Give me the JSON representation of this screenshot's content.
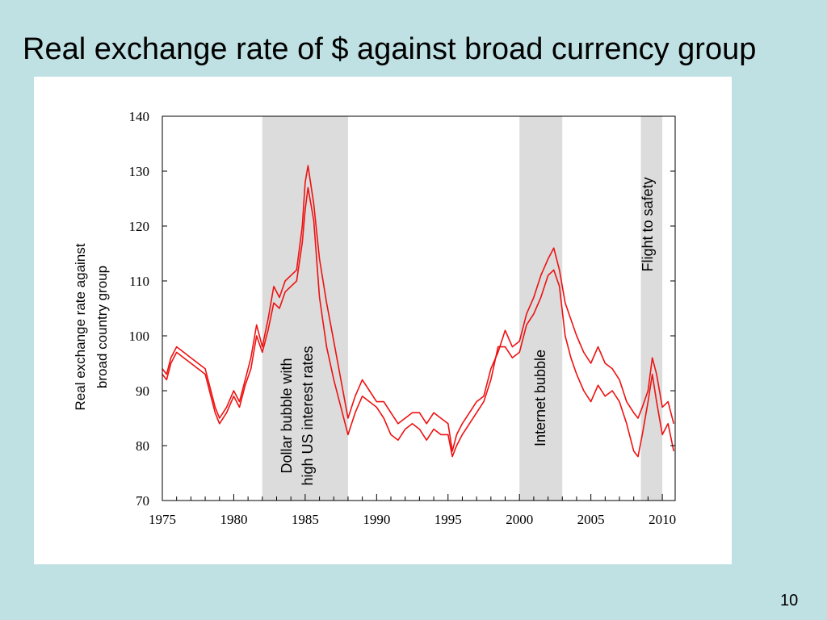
{
  "slide": {
    "title": "Real exchange rate of $ against broad currency group",
    "page_number": "10"
  },
  "colors": {
    "background": "#bfe1e3",
    "panel": "#ffffff",
    "series": "#ee1111",
    "shading": "#dcdcdc"
  },
  "chart_data": {
    "type": "line",
    "title": "",
    "xlabel": "",
    "ylabel": "Real exchange rate against broad country group",
    "ylabel_lines": [
      "Real exchange rate against",
      "broad country group"
    ],
    "xlim": [
      1975,
      2010.9
    ],
    "ylim": [
      70,
      140
    ],
    "x_ticks": [
      1975,
      1980,
      1985,
      1990,
      1995,
      2000,
      2005,
      2010
    ],
    "y_ticks": [
      70,
      80,
      90,
      100,
      110,
      120,
      130,
      140
    ],
    "grid": false,
    "shaded_periods": [
      {
        "start": 1982.0,
        "end": 1988.0,
        "label_lines": [
          "Dollar bubble with",
          "high US interest rates"
        ]
      },
      {
        "start": 2000.0,
        "end": 2003.0,
        "label_lines": [
          "Internet bubble"
        ]
      },
      {
        "start": 2008.5,
        "end": 2010.0,
        "label_lines": [
          "Flight to safety"
        ]
      }
    ],
    "series": [
      {
        "x": [
          1975.0,
          1975.3,
          1975.6,
          1976.0,
          1976.5,
          1977.0,
          1977.5,
          1978.0,
          1978.4,
          1978.7,
          1979.0,
          1979.5,
          1980.0,
          1980.4,
          1980.8,
          1981.2,
          1981.6,
          1982.0,
          1982.4,
          1982.8,
          1983.2,
          1983.6,
          1984.0,
          1984.4,
          1984.8,
          1985.0,
          1985.2,
          1985.6,
          1986.0,
          1986.5,
          1987.0,
          1987.5,
          1988.0,
          1988.5,
          1989.0,
          1989.5,
          1990.0,
          1990.5,
          1991.0,
          1991.5,
          1992.0,
          1992.5,
          1993.0,
          1993.5,
          1994.0,
          1994.5,
          1995.0,
          1995.3,
          1995.6,
          1996.0,
          1996.5,
          1997.0,
          1997.5,
          1998.0,
          1998.5,
          1999.0,
          1999.5,
          2000.0,
          2000.5,
          2001.0,
          2001.5,
          2002.0,
          2002.4,
          2002.8,
          2003.2,
          2003.6,
          2004.0,
          2004.5,
          2005.0,
          2005.5,
          2006.0,
          2006.5,
          2007.0,
          2007.5,
          2008.0,
          2008.3,
          2008.6,
          2009.0,
          2009.3,
          2009.6,
          2010.0,
          2010.4,
          2010.8
        ],
        "values": [
          94,
          93,
          96,
          98,
          97,
          96,
          95,
          94,
          90,
          87,
          85,
          87,
          90,
          88,
          92,
          96,
          102,
          98,
          103,
          109,
          107,
          110,
          111,
          112,
          120,
          128,
          131,
          124,
          114,
          106,
          99,
          92,
          85,
          89,
          92,
          90,
          88,
          88,
          86,
          84,
          85,
          86,
          86,
          84,
          86,
          85,
          84,
          79,
          82,
          84,
          86,
          88,
          89,
          94,
          97,
          101,
          98,
          99,
          104,
          107,
          111,
          114,
          116,
          112,
          106,
          103,
          100,
          97,
          95,
          98,
          95,
          94,
          92,
          88,
          86,
          85,
          87,
          90,
          96,
          93,
          87,
          88,
          84
        ]
      },
      {
        "x": [
          1975.0,
          1975.3,
          1975.6,
          1976.0,
          1976.5,
          1977.0,
          1977.5,
          1978.0,
          1978.4,
          1978.7,
          1979.0,
          1979.5,
          1980.0,
          1980.4,
          1980.8,
          1981.2,
          1981.6,
          1982.0,
          1982.4,
          1982.8,
          1983.2,
          1983.6,
          1984.0,
          1984.4,
          1984.8,
          1985.0,
          1985.2,
          1985.6,
          1986.0,
          1986.5,
          1987.0,
          1987.5,
          1988.0,
          1988.5,
          1989.0,
          1989.5,
          1990.0,
          1990.5,
          1991.0,
          1991.5,
          1992.0,
          1992.5,
          1993.0,
          1993.5,
          1994.0,
          1994.5,
          1995.0,
          1995.3,
          1995.6,
          1996.0,
          1996.5,
          1997.0,
          1997.5,
          1998.0,
          1998.5,
          1999.0,
          1999.5,
          2000.0,
          2000.5,
          2001.0,
          2001.5,
          2002.0,
          2002.4,
          2002.8,
          2003.2,
          2003.6,
          2004.0,
          2004.5,
          2005.0,
          2005.5,
          2006.0,
          2006.5,
          2007.0,
          2007.5,
          2008.0,
          2008.3,
          2008.6,
          2009.0,
          2009.3,
          2009.6,
          2010.0,
          2010.4,
          2010.8
        ],
        "values": [
          93,
          92,
          95,
          97,
          96,
          95,
          94,
          93,
          89,
          86,
          84,
          86,
          89,
          87,
          91,
          94,
          100,
          97,
          101,
          106,
          105,
          108,
          109,
          110,
          117,
          123,
          127,
          121,
          107,
          98,
          92,
          87,
          82,
          86,
          89,
          88,
          87,
          85,
          82,
          81,
          83,
          84,
          83,
          81,
          83,
          82,
          82,
          78,
          80,
          82,
          84,
          86,
          88,
          92,
          98,
          98,
          96,
          97,
          102,
          104,
          107,
          111,
          112,
          109,
          100,
          96,
          93,
          90,
          88,
          91,
          89,
          90,
          88,
          84,
          79,
          78,
          82,
          88,
          93,
          88,
          82,
          84,
          79
        ]
      }
    ]
  }
}
